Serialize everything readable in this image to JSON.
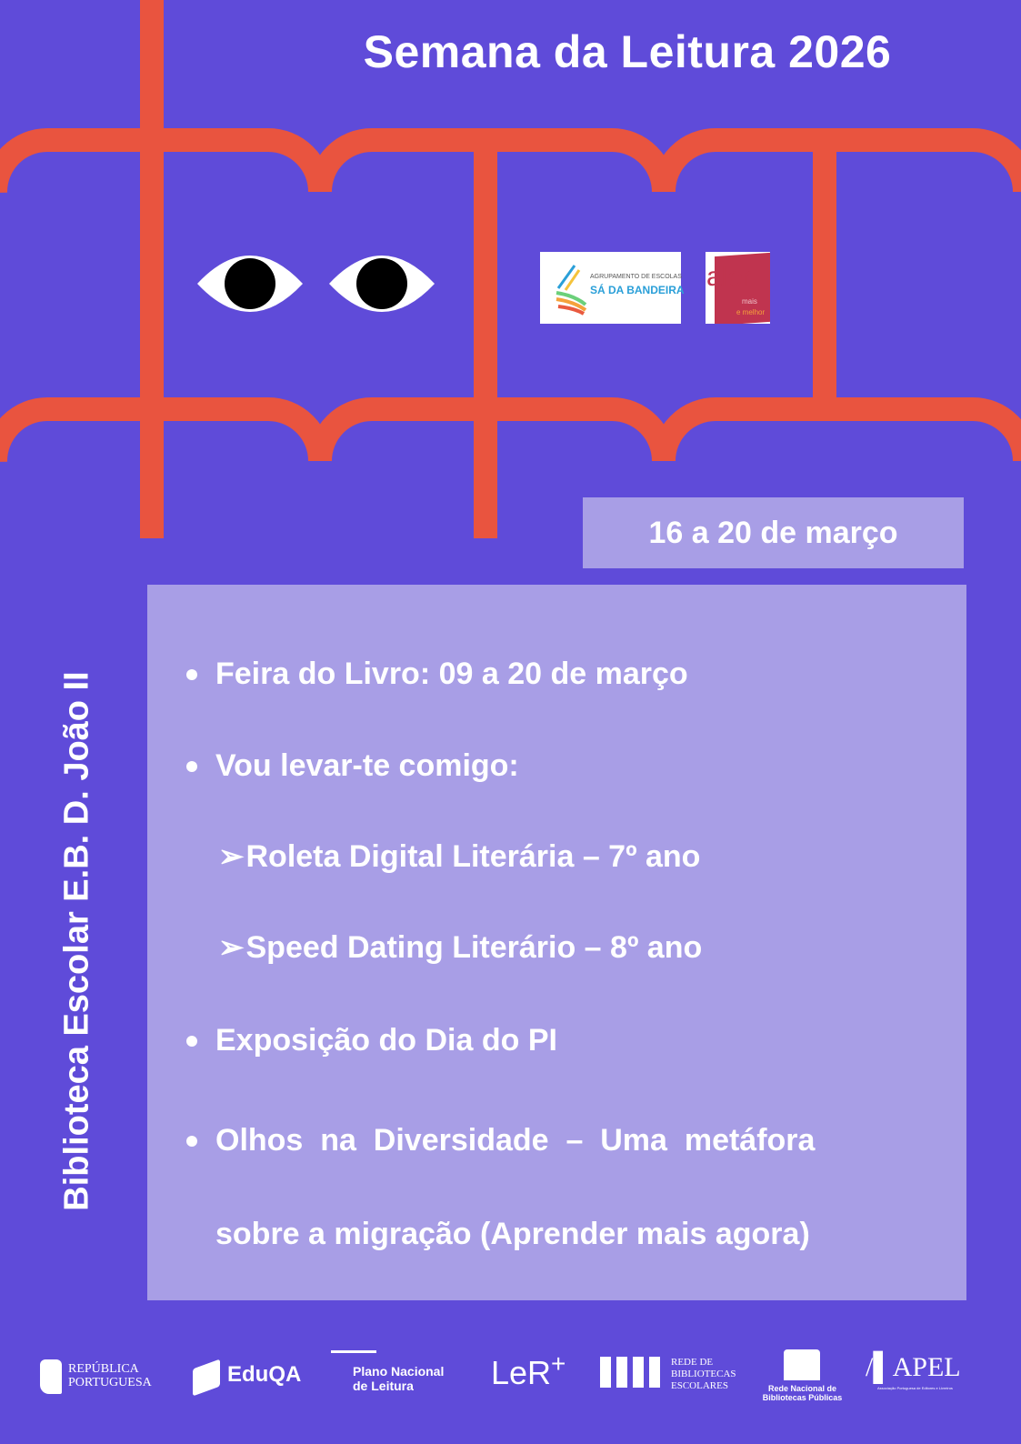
{
  "header": {
    "title": "Semana da Leitura 2026"
  },
  "colors": {
    "background": "#5f4bd9",
    "accent": "#e9543f",
    "panel": "#a89ee6",
    "text": "#ffffff"
  },
  "logos": {
    "school": {
      "line1": "AGRUPAMENTO DE ESCOLAS",
      "line2": "SÁ DA BANDEIRA"
    },
    "aler": {
      "main": "aler",
      "sub1": "mais",
      "sub2": "e melhor"
    }
  },
  "date": "16 a 20 de março",
  "side_title": "Biblioteca Escolar E.B. D. João II",
  "items": [
    {
      "text": "Feira do Livro: 09 a 20 de março",
      "type": "bullet"
    },
    {
      "text": "Vou levar-te comigo:",
      "type": "bullet"
    },
    {
      "text": "Roleta Digital Literária – 7º ano",
      "type": "sub"
    },
    {
      "text": "Speed Dating Literário – 8º ano",
      "type": "sub"
    },
    {
      "text": "Exposição do Dia do PI",
      "type": "bullet"
    },
    {
      "text": "Olhos  na  Diversidade  –  Uma  metáfora",
      "type": "bullet"
    },
    {
      "text": "sobre a migração (Aprender mais agora)",
      "type": "continuation"
    }
  ],
  "footer": {
    "republica": [
      "REPÚBLICA",
      "PORTUGUESA"
    ],
    "eduqa": "EduQA",
    "pnl": [
      "Plano Nacional",
      "de Leitura"
    ],
    "lermais": "LeR",
    "rbe": [
      "REDE DE",
      "BIBLIOTECAS",
      "ESCOLARES"
    ],
    "rnbp": [
      "Rede Nacional de",
      "Bibliotecas Públicas"
    ],
    "apel": "APEL",
    "apel_sub": "Associação Portuguesa de Editores e Livreiros"
  }
}
